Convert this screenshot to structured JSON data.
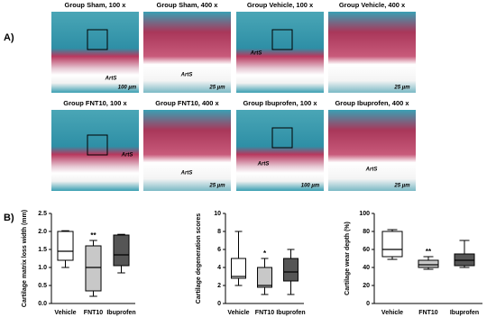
{
  "panel_labels": [
    "A)",
    "B)"
  ],
  "images": [
    {
      "title": "Group Sham, 100 x",
      "labels": [
        "ArtS",
        "100 µm"
      ]
    },
    {
      "title": "Group Sham, 400 x",
      "labels": [
        "ArtS",
        "25 µm"
      ]
    },
    {
      "title": "Group Vehicle, 100 x",
      "labels": [
        "ArtS"
      ]
    },
    {
      "title": "Group Vehicle, 400 x",
      "labels": [
        "25 µm"
      ]
    },
    {
      "title": "Group FNT10, 100 x",
      "labels": [
        "ArtS"
      ]
    },
    {
      "title": "Group FNT10, 400 x",
      "labels": [
        "ArtS",
        "25 µm"
      ]
    },
    {
      "title": "Group Ibuprofen, 100 x",
      "labels": [
        "ArtS",
        "100 µm"
      ]
    },
    {
      "title": "Group Ibuprofen, 400 x",
      "labels": [
        "ArtS",
        "25 µm"
      ]
    }
  ],
  "chart_data": [
    {
      "type": "box",
      "y_label": "Cartilage matrix loss width (mm)",
      "categories": [
        "Vehicle",
        "FNT10",
        "Ibuprofen"
      ],
      "min": [
        1.0,
        0.2,
        0.85
      ],
      "q1": [
        1.2,
        0.35,
        1.05
      ],
      "median": [
        1.45,
        1.0,
        1.35
      ],
      "q3": [
        2.0,
        1.6,
        1.9
      ],
      "max": [
        2.02,
        1.75,
        1.92
      ],
      "colors": [
        "#ffffff",
        "#c8c8c8",
        "#555555"
      ],
      "annotations": [
        null,
        "**",
        null
      ],
      "ylim": [
        0,
        2.5
      ],
      "yticks": [
        {
          "value": 0,
          "label": "0.0"
        },
        {
          "value": 0.5,
          "label": "0.5"
        },
        {
          "value": 1,
          "label": "1.0"
        },
        {
          "value": 1.5,
          "label": "1.5"
        },
        {
          "value": 2,
          "label": "2.0"
        },
        {
          "value": 2.5,
          "label": "2.5"
        }
      ]
    },
    {
      "type": "box",
      "y_label": "Cartilage degeneration scores",
      "categories": [
        "Vehicle",
        "FNT10",
        "Ibuprofen"
      ],
      "min": [
        2,
        1,
        1
      ],
      "q1": [
        2.8,
        1.8,
        2.5
      ],
      "median": [
        3,
        2,
        3.5
      ],
      "q3": [
        5,
        4,
        5
      ],
      "max": [
        8,
        5,
        6
      ],
      "colors": [
        "#ffffff",
        "#c8c8c8",
        "#555555"
      ],
      "annotations": [
        null,
        "*",
        null
      ],
      "ylim": [
        0,
        10
      ],
      "yticks": [
        0,
        2,
        4,
        6,
        8,
        10
      ]
    },
    {
      "type": "box",
      "y_label": "Cartilage wear depth (%)",
      "categories": [
        "Vehicle",
        "FNT10",
        "Ibuprofen"
      ],
      "min": [
        49,
        38,
        40
      ],
      "q1": [
        52,
        40,
        42
      ],
      "median": [
        60,
        43,
        48
      ],
      "q3": [
        80,
        48,
        55
      ],
      "max": [
        82,
        52,
        70
      ],
      "colors": [
        "#ffffff",
        "#c8c8c8",
        "#555555"
      ],
      "annotations": [
        null,
        "**",
        null
      ],
      "ylim": [
        0,
        100
      ],
      "yticks": [
        0,
        20,
        40,
        60,
        80,
        100
      ]
    }
  ]
}
